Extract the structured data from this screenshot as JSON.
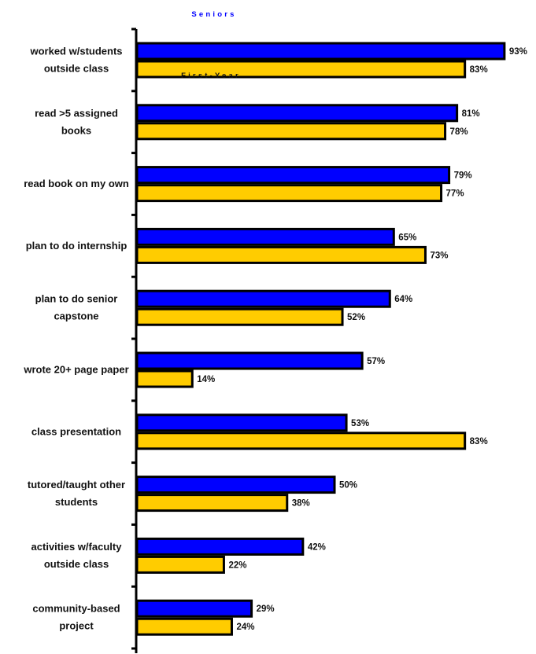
{
  "chart_data": {
    "type": "bar",
    "orientation": "horizontal",
    "categories": [
      "worked w/students|outside class",
      "read >5 assigned|books",
      "read book on my own",
      "plan to do internship",
      "plan to do senior|capstone",
      "wrote 20+ page paper",
      "class presentation",
      "tutored/taught other|students",
      "activities w/faculty|outside class",
      "community-based|project"
    ],
    "series": [
      {
        "name": "Seniors",
        "color": "#0000ff",
        "values": [
          93,
          81,
          79,
          65,
          64,
          57,
          53,
          50,
          42,
          29
        ]
      },
      {
        "name": "First-Year",
        "color": "#ffcc00",
        "values": [
          83,
          78,
          77,
          73,
          52,
          14,
          83,
          38,
          22,
          24
        ]
      }
    ],
    "value_suffix": "%",
    "xlim": [
      0,
      100
    ],
    "legend": {
      "placement": "top-left",
      "labels": [
        "Seniors",
        "First-Year"
      ]
    },
    "grid": false
  }
}
